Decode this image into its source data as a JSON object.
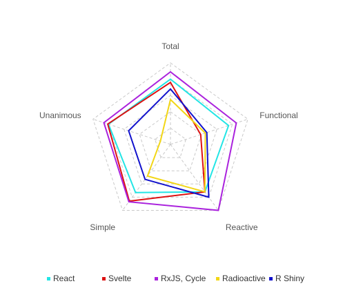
{
  "chart_data": {
    "type": "radar",
    "title": "",
    "axes": [
      "Total",
      "Functional",
      "Reactive",
      "Simple",
      "Unanimous"
    ],
    "rmax": 10,
    "grid_levels": [
      2,
      4,
      6,
      8,
      10
    ],
    "grid": true,
    "legend_position": "bottom",
    "series": [
      {
        "name": "React",
        "color": "#22e5e5",
        "values": [
          8.0,
          7.5,
          7.2,
          7.3,
          8.0
        ]
      },
      {
        "name": "Svelte",
        "color": "#dd1111",
        "values": [
          7.6,
          3.9,
          7.2,
          8.6,
          8.1
        ]
      },
      {
        "name": "RxJS, Cycle",
        "color": "#aa22dd",
        "values": [
          8.9,
          8.5,
          10.0,
          8.7,
          8.6
        ]
      },
      {
        "name": "Radioactive",
        "color": "#f2d616",
        "values": [
          5.5,
          4.5,
          7.2,
          4.8,
          1.3
        ]
      },
      {
        "name": "R Shiny",
        "color": "#1111cc",
        "values": [
          6.8,
          4.7,
          8.0,
          5.3,
          5.4
        ]
      }
    ]
  }
}
